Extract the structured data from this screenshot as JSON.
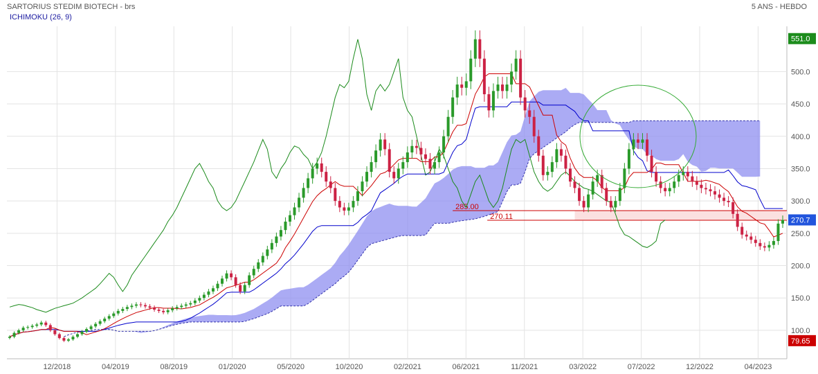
{
  "header": {
    "title": "SARTORIUS STEDIM BIOTECH - brs",
    "period": "5 ANS - HEBDO",
    "indicator": "ICHIMOKU (26, 9)"
  },
  "chart_data": {
    "type": "candlestick",
    "x_ticks": [
      "12/2018",
      "04/2019",
      "08/2019",
      "01/2020",
      "05/2020",
      "10/2020",
      "02/2021",
      "06/2021",
      "11/2021",
      "03/2022",
      "07/2022",
      "12/2022",
      "04/2023"
    ],
    "y_ticks": [
      100.0,
      150.0,
      200.0,
      250.0,
      300.0,
      350.0,
      400.0,
      450.0,
      500.0
    ],
    "ylim": [
      56,
      570
    ],
    "levels": [
      285.0,
      270.11
    ],
    "price_tags": {
      "max": 551.0,
      "last": 270.7,
      "min": 79.65
    },
    "colors": {
      "up": "#2a9a2a",
      "down": "#cc2244",
      "tenkan": "#cc0000",
      "kijun": "#0000cc",
      "chikou": "#1a8a1a",
      "cloud": "#8f8ff0",
      "level": "#cc0000",
      "tag_green": "#1c8c1c",
      "tag_blue": "#2255dd",
      "tag_red": "#cc0000"
    },
    "closes": [
      90,
      96,
      100,
      104,
      105,
      107,
      109,
      112,
      108,
      100,
      94,
      88,
      84,
      86,
      90,
      94,
      98,
      102,
      106,
      110,
      114,
      118,
      122,
      126,
      130,
      133,
      136,
      138,
      140,
      139,
      137,
      135,
      132,
      130,
      128,
      131,
      134,
      136,
      138,
      140,
      142,
      146,
      150,
      155,
      160,
      165,
      172,
      180,
      188,
      182,
      170,
      160,
      170,
      185,
      195,
      205,
      215,
      225,
      235,
      245,
      255,
      268,
      278,
      290,
      305,
      320,
      335,
      350,
      358,
      345,
      330,
      320,
      300,
      290,
      285,
      290,
      300,
      315,
      330,
      345,
      360,
      378,
      395,
      380,
      345,
      335,
      350,
      360,
      375,
      385,
      382,
      372,
      365,
      350,
      360,
      375,
      400,
      430,
      460,
      480,
      475,
      485,
      520,
      550,
      520,
      465,
      440,
      470,
      480,
      470,
      480,
      500,
      520,
      460,
      440,
      430,
      400,
      370,
      340,
      345,
      360,
      380,
      370,
      350,
      330,
      320,
      300,
      290,
      310,
      330,
      340,
      320,
      300,
      290,
      300,
      320,
      350,
      380,
      395,
      390,
      395,
      370,
      345,
      330,
      320,
      315,
      320,
      330,
      340,
      345,
      338,
      330,
      325,
      320,
      318,
      315,
      310,
      305,
      300,
      298,
      280,
      260,
      248,
      245,
      240,
      235,
      230,
      228,
      232,
      238,
      265,
      270.7
    ]
  }
}
